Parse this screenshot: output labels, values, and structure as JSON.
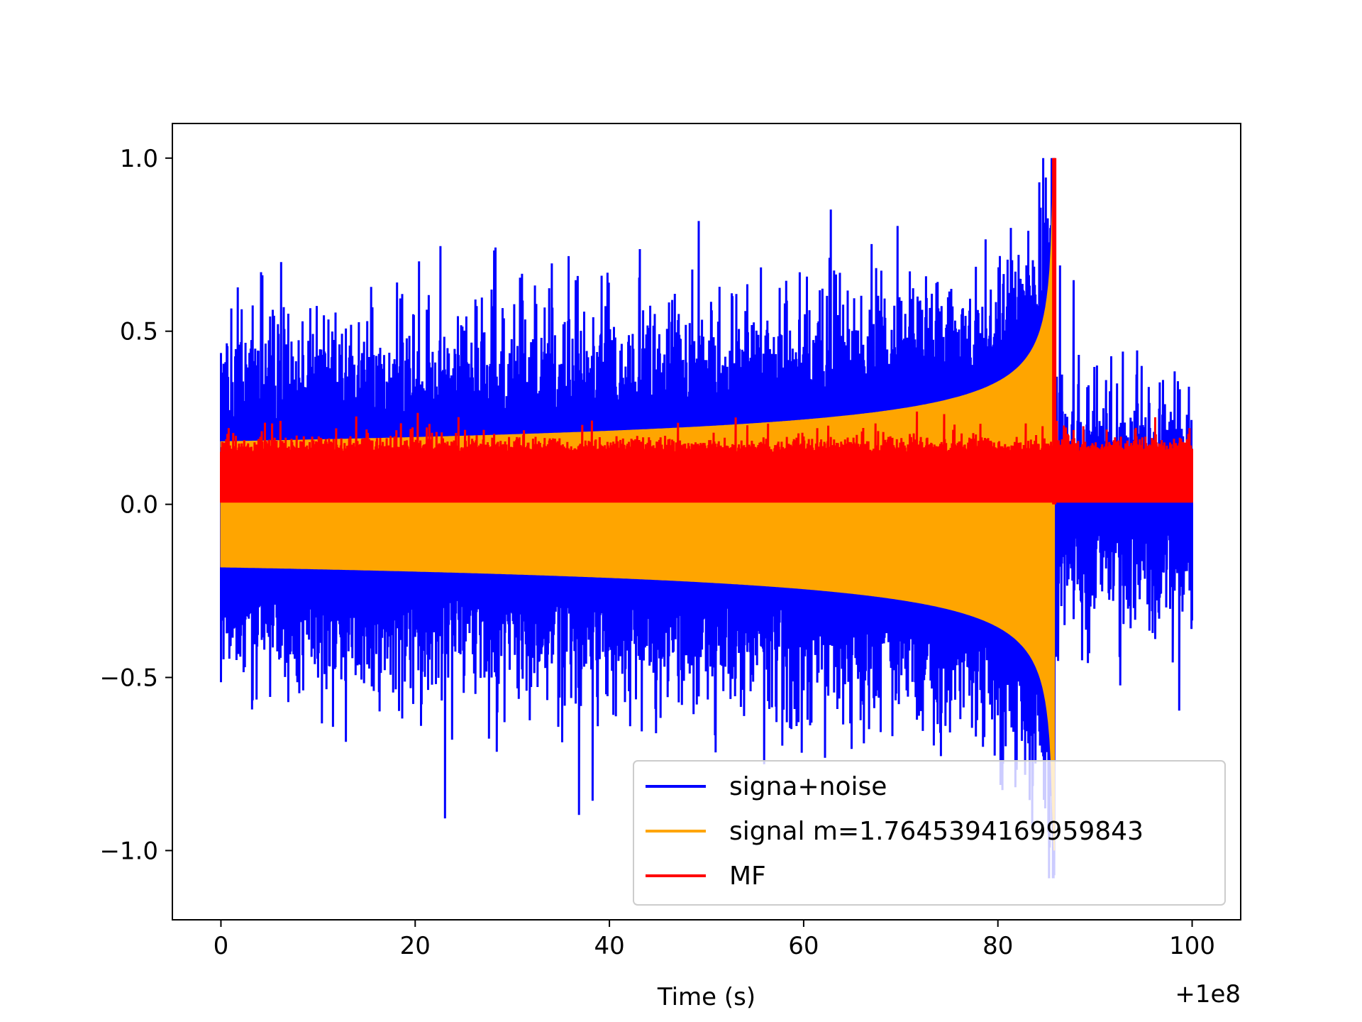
{
  "chart_data": {
    "type": "line",
    "title": "",
    "xlabel": "Time (s)",
    "ylabel": "",
    "x_offset_label": "+1e8",
    "xlim": [
      -5,
      105
    ],
    "ylim": [
      -1.2,
      1.1
    ],
    "xticks": [
      0,
      20,
      40,
      60,
      80,
      100
    ],
    "xtick_labels": [
      "0",
      "20",
      "40",
      "60",
      "80",
      "100"
    ],
    "yticks": [
      -1.0,
      -0.5,
      0.0,
      0.5,
      1.0
    ],
    "ytick_labels": [
      "−1.0",
      "−0.5",
      "0.0",
      "0.5",
      "1.0"
    ],
    "grid": false,
    "legend_position": "lower-right",
    "series": [
      {
        "name": "signa+noise",
        "color": "#0000ff",
        "description": "noisy signal, dense oscillation spanning roughly ±0.2 to ±1.0",
        "x_range": [
          0,
          100
        ],
        "envelope_min": 0.18,
        "peak_max": 1.0,
        "peak_min": -1.08
      },
      {
        "name": "signal m=1.7645394169959843",
        "color": "#ffa500",
        "description": "chirp signal, amplitude growing from about 0.18 at t=0 to about 1.0 near t=85.8, then zero",
        "x_range": [
          0,
          85.8
        ],
        "amplitude_start": 0.18,
        "amplitude_end": 1.0,
        "merger_time": 85.8
      },
      {
        "name": "MF",
        "color": "#ff0000",
        "description": "matched filter output, mostly between 0 and 0.2, single peak of 1.0 at t≈85.8",
        "x_range": [
          0,
          100
        ],
        "baseline_max": 0.2,
        "peak_value": 1.0,
        "peak_time": 85.8
      }
    ]
  }
}
